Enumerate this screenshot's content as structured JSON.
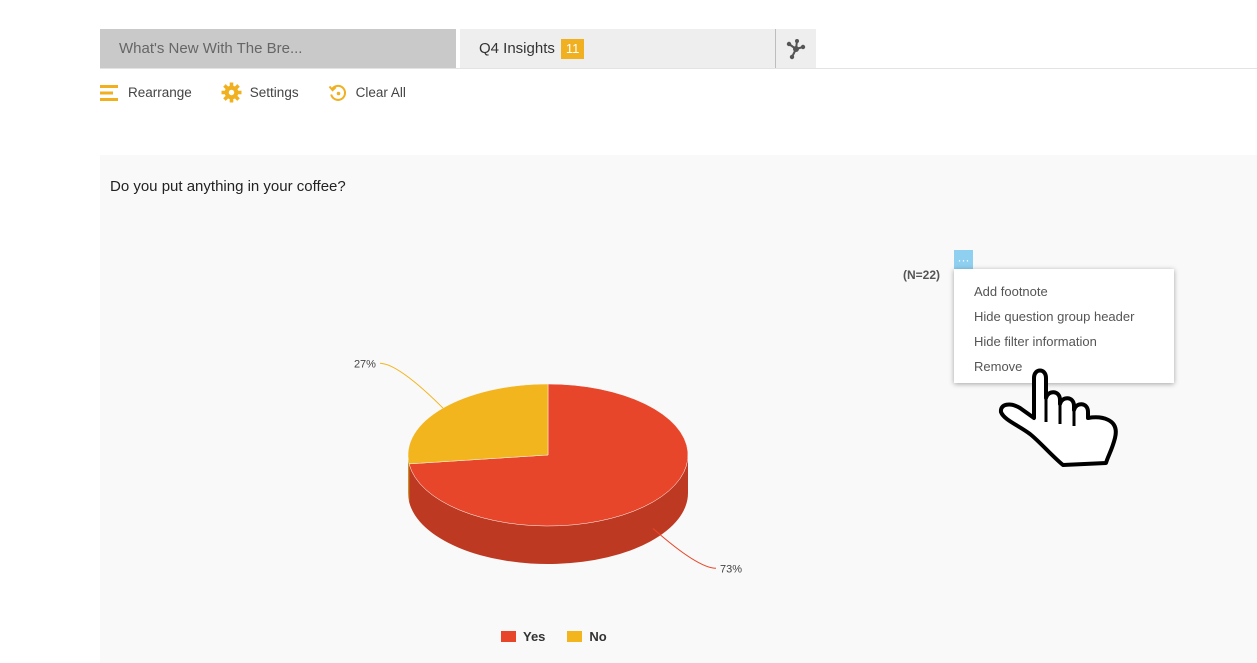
{
  "tabs": [
    {
      "label": "What's New With The Bre...",
      "active": false
    },
    {
      "label": "Q4 Insights",
      "badge": "11",
      "active": true
    }
  ],
  "network_icon": "network-icon",
  "toolbar": {
    "rearrange": "Rearrange",
    "settings": "Settings",
    "clear_all": "Clear All"
  },
  "panel": {
    "question": "Do you put anything in your coffee?",
    "n_count": "(N=22)",
    "more_button": "···"
  },
  "menu": {
    "items": [
      "Add footnote",
      "Hide question group header",
      "Hide filter information",
      "Remove"
    ]
  },
  "colors": {
    "accent": "#f0b020",
    "yes": "#e8462a",
    "no": "#f2b51d"
  },
  "chart_data": {
    "type": "pie",
    "slices": [
      {
        "name": "Yes",
        "value": 73,
        "label": "73%",
        "color": "#e8462a"
      },
      {
        "name": "No",
        "value": 27,
        "label": "27%",
        "color": "#f2b51d"
      }
    ],
    "legend": [
      "Yes",
      "No"
    ],
    "legend_position": "bottom"
  }
}
